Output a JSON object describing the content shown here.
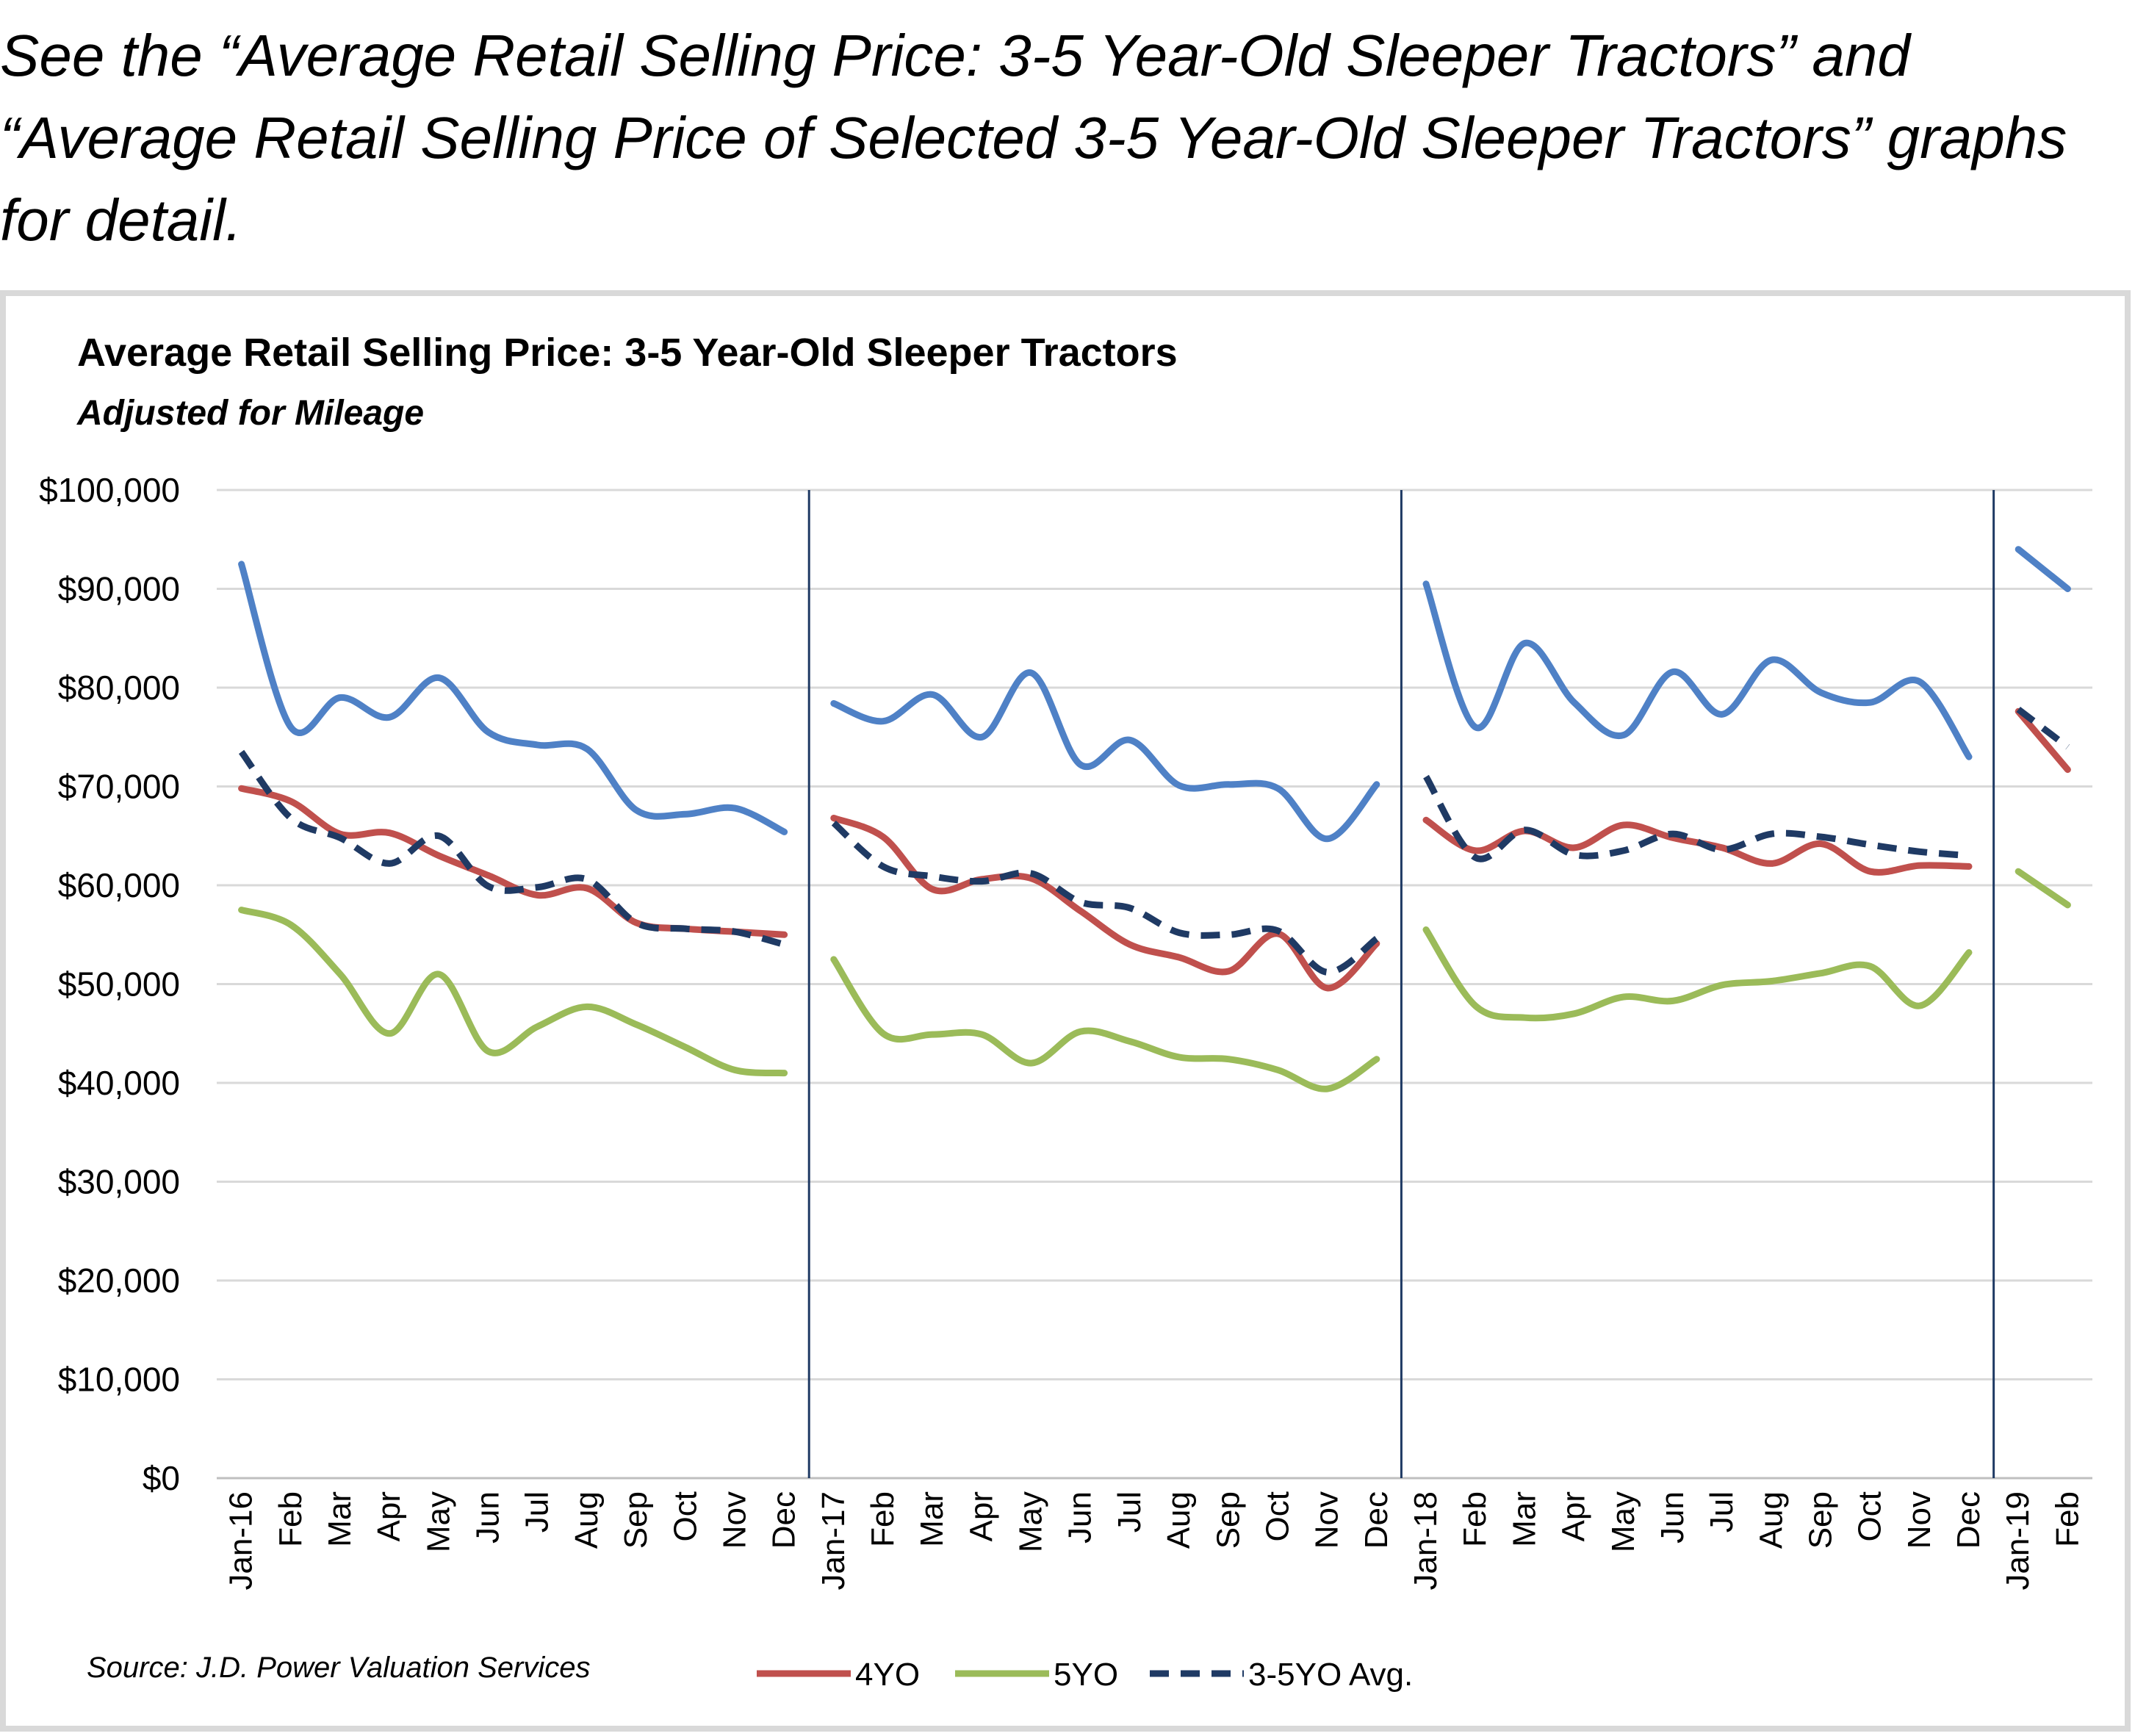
{
  "intro_lines": [
    "See the “Average Retail Selling Price: 3-5 Year-Old Sleeper Tractors” and",
    "“Average Retail Selling Price of Selected 3-5 Year-Old Sleeper Tractors” graphs",
    "for detail."
  ],
  "chart_data": {
    "type": "line",
    "title": "Average Retail Selling Price: 3-5 Year-Old Sleeper Tractors",
    "subtitle": "Adjusted for Mileage",
    "source": "Source: J.D. Power Valuation Services",
    "ylim": [
      0,
      100000
    ],
    "yticks": [
      0,
      10000,
      20000,
      30000,
      40000,
      50000,
      60000,
      70000,
      80000,
      90000,
      100000
    ],
    "ytick_labels": [
      "$0",
      "$10,000",
      "$20,000",
      "$30,000",
      "$40,000",
      "$50,000",
      "$60,000",
      "$70,000",
      "$80,000",
      "$90,000",
      "$100,000"
    ],
    "grid": true,
    "legend_position": "bottom",
    "year_dividers_after": [
      11,
      23,
      35
    ],
    "categories": [
      "Jan-16",
      "Feb",
      "Mar",
      "Apr",
      "May",
      "Jun",
      "Jul",
      "Aug",
      "Sep",
      "Oct",
      "Nov",
      "Dec",
      "Jan-17",
      "Feb",
      "Mar",
      "Apr",
      "May",
      "Jun",
      "Jul",
      "Aug",
      "Sep",
      "Oct",
      "Nov",
      "Dec",
      "Jan-18",
      "Feb",
      "Mar",
      "Apr",
      "May",
      "Jun",
      "Jul",
      "Aug",
      "Sep",
      "Oct",
      "Nov",
      "Dec",
      "Jan-19",
      "Feb"
    ],
    "segments": [
      [
        0,
        11
      ],
      [
        12,
        23
      ],
      [
        24,
        35
      ],
      [
        36,
        37
      ]
    ],
    "series": [
      {
        "name": "",
        "color": "#4f81c6",
        "dash": false,
        "values": [
          92500,
          76000,
          79000,
          77000,
          81000,
          75500,
          74200,
          73800,
          67600,
          67200,
          67800,
          65400,
          78400,
          76600,
          79300,
          75000,
          81500,
          72200,
          74700,
          70100,
          70200,
          69800,
          64700,
          70200,
          90500,
          76000,
          84500,
          78500,
          75200,
          81600,
          77300,
          82800,
          79500,
          78500,
          80600,
          73000,
          94000,
          90000
        ]
      },
      {
        "name": "4YO",
        "color": "#c0504d",
        "dash": false,
        "values": [
          69800,
          68500,
          65200,
          65300,
          63000,
          61000,
          59000,
          59700,
          56200,
          55600,
          55300,
          55000,
          66800,
          64900,
          59600,
          60600,
          60700,
          57400,
          54000,
          52700,
          51300,
          55100,
          49600,
          54100,
          66600,
          63500,
          65500,
          63800,
          66100,
          64800,
          63800,
          62200,
          64200,
          61400,
          62000,
          61900,
          77600,
          71700
        ]
      },
      {
        "name": "5YO",
        "color": "#9bbb59",
        "dash": false,
        "values": [
          57500,
          56000,
          51000,
          45000,
          51000,
          43200,
          45700,
          47700,
          45900,
          43600,
          41300,
          41000,
          52500,
          45000,
          44900,
          44900,
          42000,
          45200,
          44200,
          42600,
          42400,
          41300,
          39400,
          42400,
          55500,
          47800,
          46600,
          47000,
          48700,
          48300,
          49900,
          50300,
          51100,
          51800,
          47800,
          53200,
          61400,
          58000
        ]
      },
      {
        "name": "3-5YO Avg.",
        "color": "#1f3a64",
        "dash": true,
        "values": [
          73500,
          66800,
          64800,
          62200,
          65000,
          59900,
          59800,
          60600,
          56200,
          55600,
          55300,
          54000,
          66300,
          61900,
          60900,
          60400,
          61200,
          58300,
          57700,
          55200,
          55000,
          55400,
          51200,
          54600,
          71000,
          62800,
          65600,
          63100,
          63500,
          65200,
          63600,
          65200,
          64900,
          64100,
          63400,
          63000,
          77800,
          74000
        ]
      }
    ]
  }
}
